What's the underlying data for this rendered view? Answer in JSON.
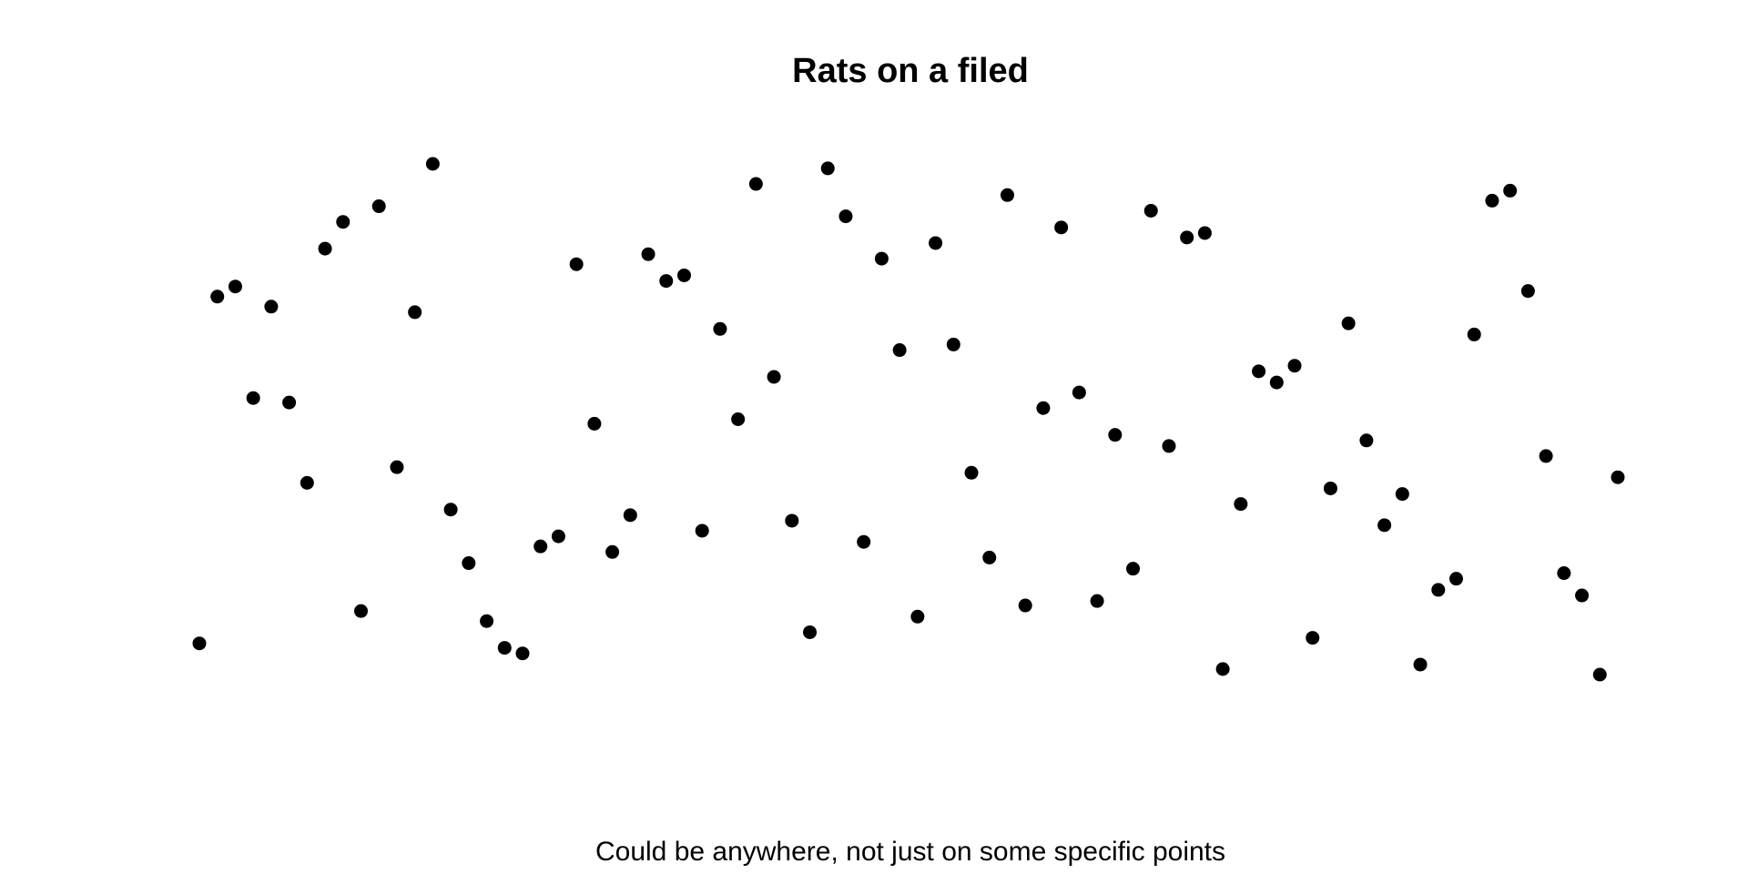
{
  "chart_data": {
    "type": "scatter",
    "title": "Rats on a filed",
    "xlabel": "Could be anywhere, not just on some specific points",
    "color": "#000000",
    "x": [
      1,
      2,
      3,
      4,
      5,
      6,
      7,
      8,
      9,
      10,
      11,
      12,
      13,
      14,
      15,
      16,
      17,
      18,
      19,
      20,
      21,
      22,
      23,
      24,
      25,
      26,
      27,
      28,
      29,
      30,
      31,
      32,
      33,
      34,
      35,
      36,
      37,
      38,
      39,
      40,
      41,
      42,
      43,
      44,
      45,
      46,
      47,
      48,
      49,
      50,
      51,
      52,
      53,
      54,
      55,
      56,
      57,
      58,
      59,
      60,
      61,
      62,
      63,
      64,
      65,
      66,
      67,
      68,
      69,
      70,
      71,
      72,
      73,
      74,
      75,
      76,
      77,
      78,
      79,
      80
    ],
    "values": [
      73,
      384,
      393,
      293,
      375,
      289,
      217,
      427,
      451,
      102,
      465,
      231,
      370,
      503,
      193,
      145,
      93,
      69,
      64,
      160,
      169,
      413,
      270,
      155,
      188,
      422,
      398,
      403,
      174,
      355,
      274,
      485,
      312,
      183,
      83,
      499,
      456,
      164,
      418,
      336,
      97,
      432,
      341,
      226,
      150,
      475,
      107,
      284,
      446,
      298,
      111,
      260,
      140,
      461,
      250,
      437,
      441,
      50,
      198,
      317,
      307,
      322,
      78,
      212,
      360,
      255,
      179,
      207,
      54,
      121,
      131,
      350,
      470,
      479,
      389,
      241,
      136,
      116,
      45,
      222
    ],
    "xlim": [
      1,
      80
    ],
    "ylim": [
      45,
      503
    ]
  }
}
